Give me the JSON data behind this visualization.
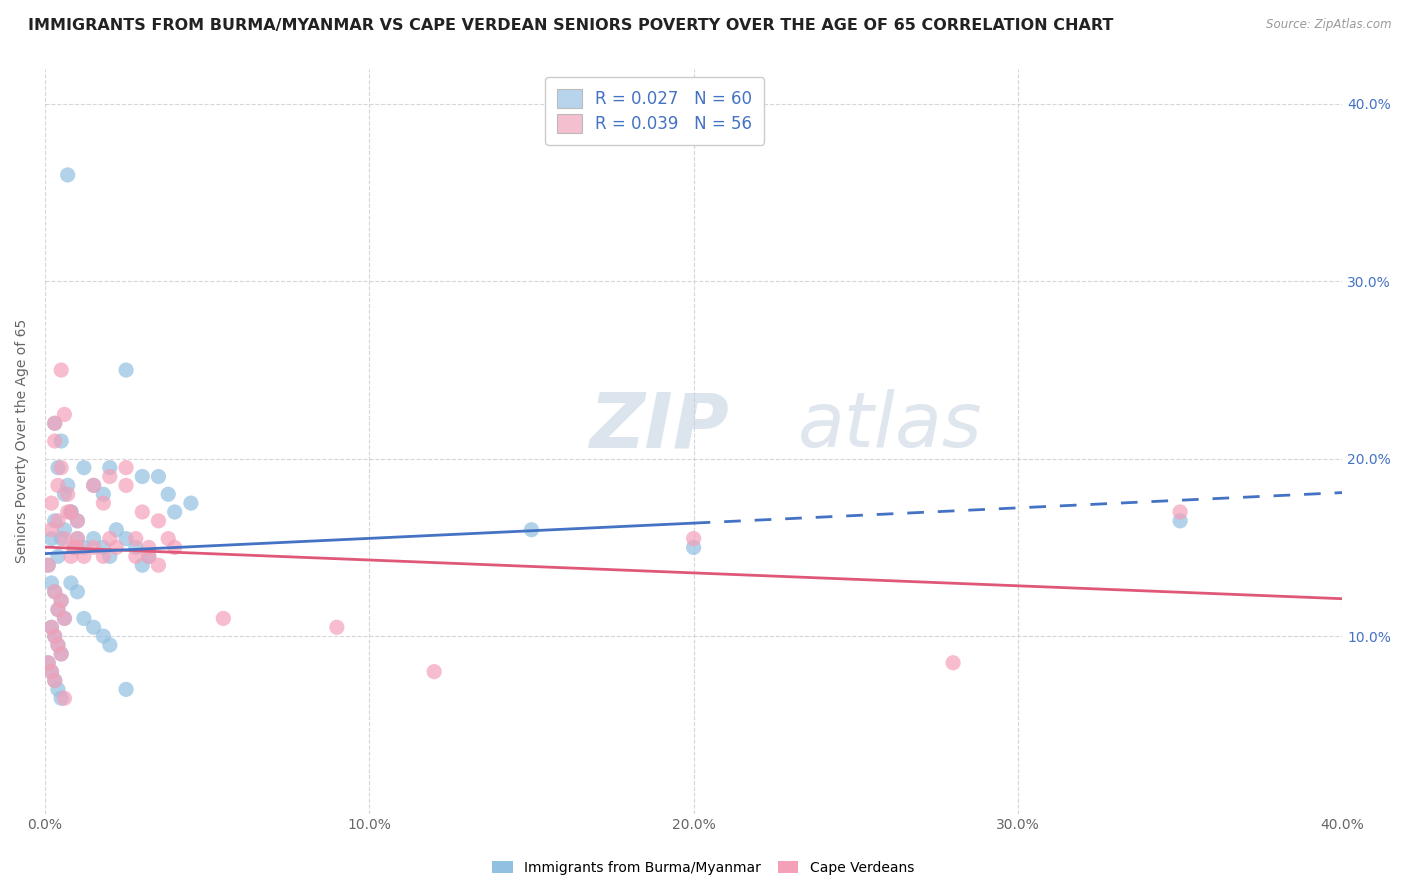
{
  "title": "IMMIGRANTS FROM BURMA/MYANMAR VS CAPE VERDEAN SENIORS POVERTY OVER THE AGE OF 65 CORRELATION CHART",
  "source": "Source: ZipAtlas.com",
  "ylabel": "Seniors Poverty Over the Age of 65",
  "xlim": [
    0.0,
    0.4
  ],
  "ylim": [
    0.0,
    0.42
  ],
  "xticks": [
    0.0,
    0.1,
    0.2,
    0.3,
    0.4
  ],
  "xticklabels": [
    "0.0%",
    "10.0%",
    "20.0%",
    "30.0%",
    "40.0%"
  ],
  "yticks": [
    0.1,
    0.2,
    0.3,
    0.4
  ],
  "yticklabels": [
    "10.0%",
    "20.0%",
    "30.0%",
    "40.0%"
  ],
  "blue_scatter_color": "#92c0e0",
  "pink_scatter_color": "#f4a0b8",
  "legend_blue_label": "R = 0.027   N = 60",
  "legend_pink_label": "R = 0.039   N = 56",
  "legend_blue_face": "#b8d4ec",
  "legend_pink_face": "#f4c0d0",
  "watermark_zip": "ZIP",
  "watermark_atlas": "atlas",
  "blue_series_label": "Immigrants from Burma/Myanmar",
  "pink_series_label": "Cape Verdeans",
  "blue_x": [
    0.007,
    0.003,
    0.005,
    0.004,
    0.006,
    0.008,
    0.002,
    0.01,
    0.009,
    0.001,
    0.003,
    0.005,
    0.004,
    0.007,
    0.006,
    0.002,
    0.008,
    0.003,
    0.005,
    0.004,
    0.006,
    0.002,
    0.003,
    0.004,
    0.005,
    0.001,
    0.002,
    0.003,
    0.004,
    0.005,
    0.012,
    0.015,
    0.018,
    0.02,
    0.025,
    0.03,
    0.035,
    0.038,
    0.04,
    0.045,
    0.01,
    0.012,
    0.015,
    0.018,
    0.02,
    0.022,
    0.025,
    0.028,
    0.03,
    0.032,
    0.008,
    0.01,
    0.012,
    0.015,
    0.018,
    0.02,
    0.025,
    0.2,
    0.15,
    0.35
  ],
  "blue_y": [
    0.36,
    0.165,
    0.155,
    0.145,
    0.16,
    0.17,
    0.155,
    0.165,
    0.15,
    0.14,
    0.22,
    0.21,
    0.195,
    0.185,
    0.18,
    0.13,
    0.17,
    0.125,
    0.12,
    0.115,
    0.11,
    0.105,
    0.1,
    0.095,
    0.09,
    0.085,
    0.08,
    0.075,
    0.07,
    0.065,
    0.195,
    0.185,
    0.18,
    0.195,
    0.25,
    0.19,
    0.19,
    0.18,
    0.17,
    0.175,
    0.155,
    0.15,
    0.155,
    0.15,
    0.145,
    0.16,
    0.155,
    0.15,
    0.14,
    0.145,
    0.13,
    0.125,
    0.11,
    0.105,
    0.1,
    0.095,
    0.07,
    0.15,
    0.16,
    0.165
  ],
  "pink_x": [
    0.004,
    0.006,
    0.008,
    0.002,
    0.005,
    0.007,
    0.003,
    0.009,
    0.001,
    0.01,
    0.003,
    0.005,
    0.004,
    0.006,
    0.007,
    0.002,
    0.008,
    0.003,
    0.005,
    0.004,
    0.006,
    0.002,
    0.003,
    0.004,
    0.005,
    0.001,
    0.002,
    0.003,
    0.01,
    0.006,
    0.015,
    0.018,
    0.02,
    0.025,
    0.03,
    0.035,
    0.038,
    0.04,
    0.028,
    0.032,
    0.01,
    0.012,
    0.015,
    0.018,
    0.02,
    0.022,
    0.025,
    0.028,
    0.032,
    0.035,
    0.055,
    0.09,
    0.12,
    0.2,
    0.28,
    0.35
  ],
  "pink_y": [
    0.165,
    0.155,
    0.145,
    0.16,
    0.25,
    0.17,
    0.22,
    0.15,
    0.14,
    0.165,
    0.21,
    0.195,
    0.185,
    0.225,
    0.18,
    0.175,
    0.17,
    0.125,
    0.12,
    0.115,
    0.11,
    0.105,
    0.1,
    0.095,
    0.09,
    0.085,
    0.08,
    0.075,
    0.155,
    0.065,
    0.185,
    0.175,
    0.19,
    0.185,
    0.17,
    0.165,
    0.155,
    0.15,
    0.155,
    0.15,
    0.15,
    0.145,
    0.15,
    0.145,
    0.155,
    0.15,
    0.195,
    0.145,
    0.145,
    0.14,
    0.11,
    0.105,
    0.08,
    0.155,
    0.085,
    0.17
  ],
  "blue_trendline_color": "#4472c4",
  "pink_trendline_color": "#e05878",
  "grid_color": "#cccccc",
  "bg_color": "#ffffff",
  "title_color": "#222222",
  "title_fontsize": 11.5,
  "axis_fontsize": 10,
  "ytick_color": "#4472c4",
  "xtick_color": "#666666"
}
